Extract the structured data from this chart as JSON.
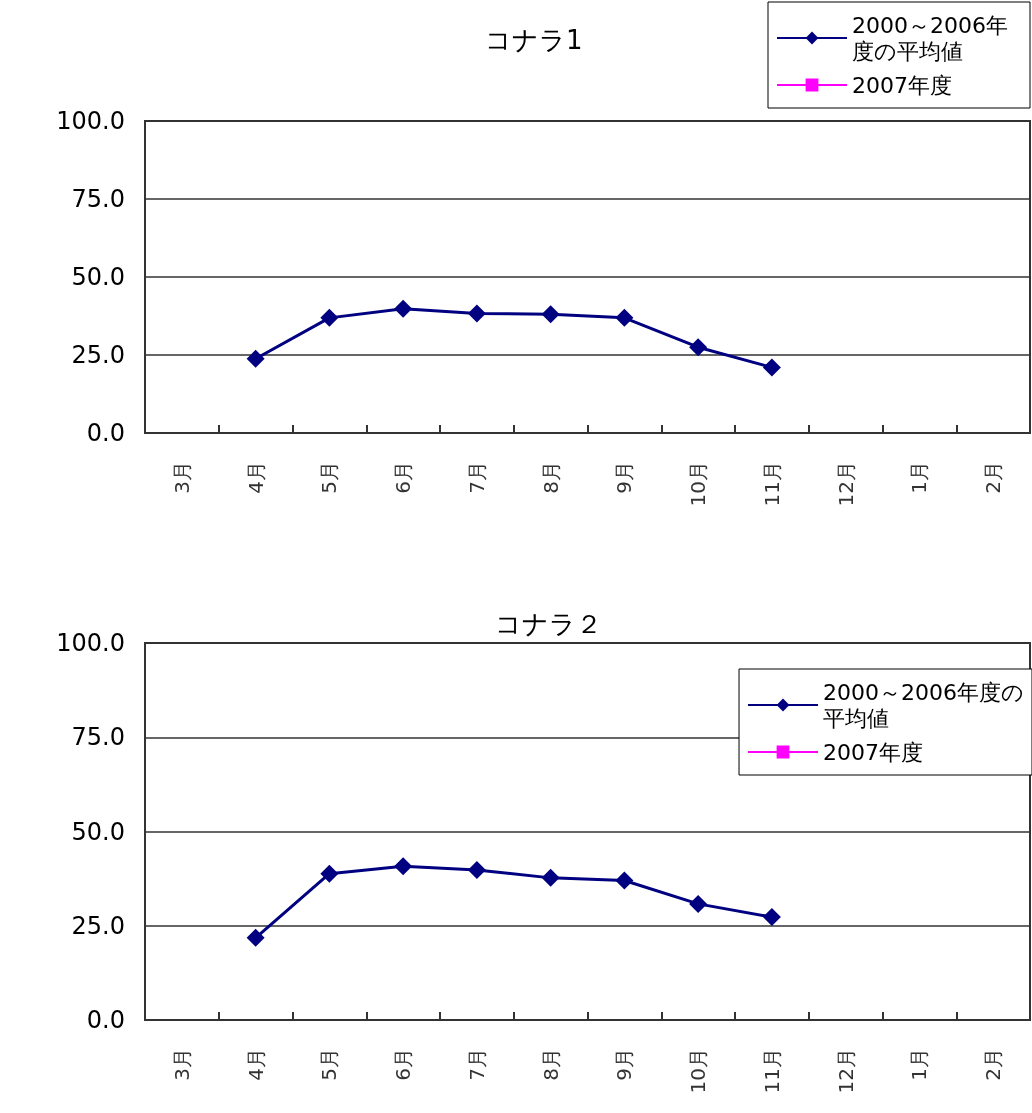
{
  "chart_data": [
    {
      "type": "line",
      "title": "コナラ1",
      "categories": [
        "3月",
        "4月",
        "5月",
        "6月",
        "7月",
        "8月",
        "9月",
        "10月",
        "11月",
        "12月",
        "1月",
        "2月"
      ],
      "series": [
        {
          "name": "2000～2006年度の平均値",
          "color": "#000080",
          "marker": "diamond",
          "values": [
            null,
            23.8,
            36.9,
            39.8,
            38.3,
            38.1,
            36.9,
            27.5,
            21.0,
            null,
            null,
            null
          ]
        },
        {
          "name": "2007年度",
          "color": "#ff00ff",
          "marker": "square",
          "values": [
            null,
            null,
            null,
            null,
            null,
            null,
            null,
            null,
            null,
            null,
            null,
            null
          ]
        }
      ],
      "ylim": [
        0,
        100
      ],
      "yticks": [
        {
          "value": 0,
          "label": "0.0"
        },
        {
          "value": 25,
          "label": "25.0"
        },
        {
          "value": 50,
          "label": "50.0"
        },
        {
          "value": 75,
          "label": "75.0"
        },
        {
          "value": 100,
          "label": "100.0"
        }
      ],
      "grid": "y",
      "legend": "top right"
    },
    {
      "type": "line",
      "title": "コナラ２",
      "categories": [
        "3月",
        "4月",
        "5月",
        "6月",
        "7月",
        "8月",
        "9月",
        "10月",
        "11月",
        "12月",
        "1月",
        "2月"
      ],
      "series": [
        {
          "name": "2000～2006年度の平均値",
          "color": "#000080",
          "marker": "diamond",
          "values": [
            null,
            21.8,
            38.8,
            40.8,
            39.8,
            37.7,
            37.0,
            30.8,
            27.3,
            null,
            null,
            null
          ]
        },
        {
          "name": "2007年度",
          "color": "#ff00ff",
          "marker": "square",
          "values": [
            null,
            null,
            null,
            null,
            null,
            null,
            null,
            null,
            null,
            null,
            null,
            null
          ]
        }
      ],
      "ylim": [
        0,
        100
      ],
      "yticks": [
        {
          "value": 0,
          "label": "0.0"
        },
        {
          "value": 25,
          "label": "25.0"
        },
        {
          "value": 50,
          "label": "50.0"
        },
        {
          "value": 75,
          "label": "75.0"
        },
        {
          "value": 100,
          "label": "100.0"
        }
      ],
      "grid": "y",
      "legend": "top right"
    }
  ]
}
